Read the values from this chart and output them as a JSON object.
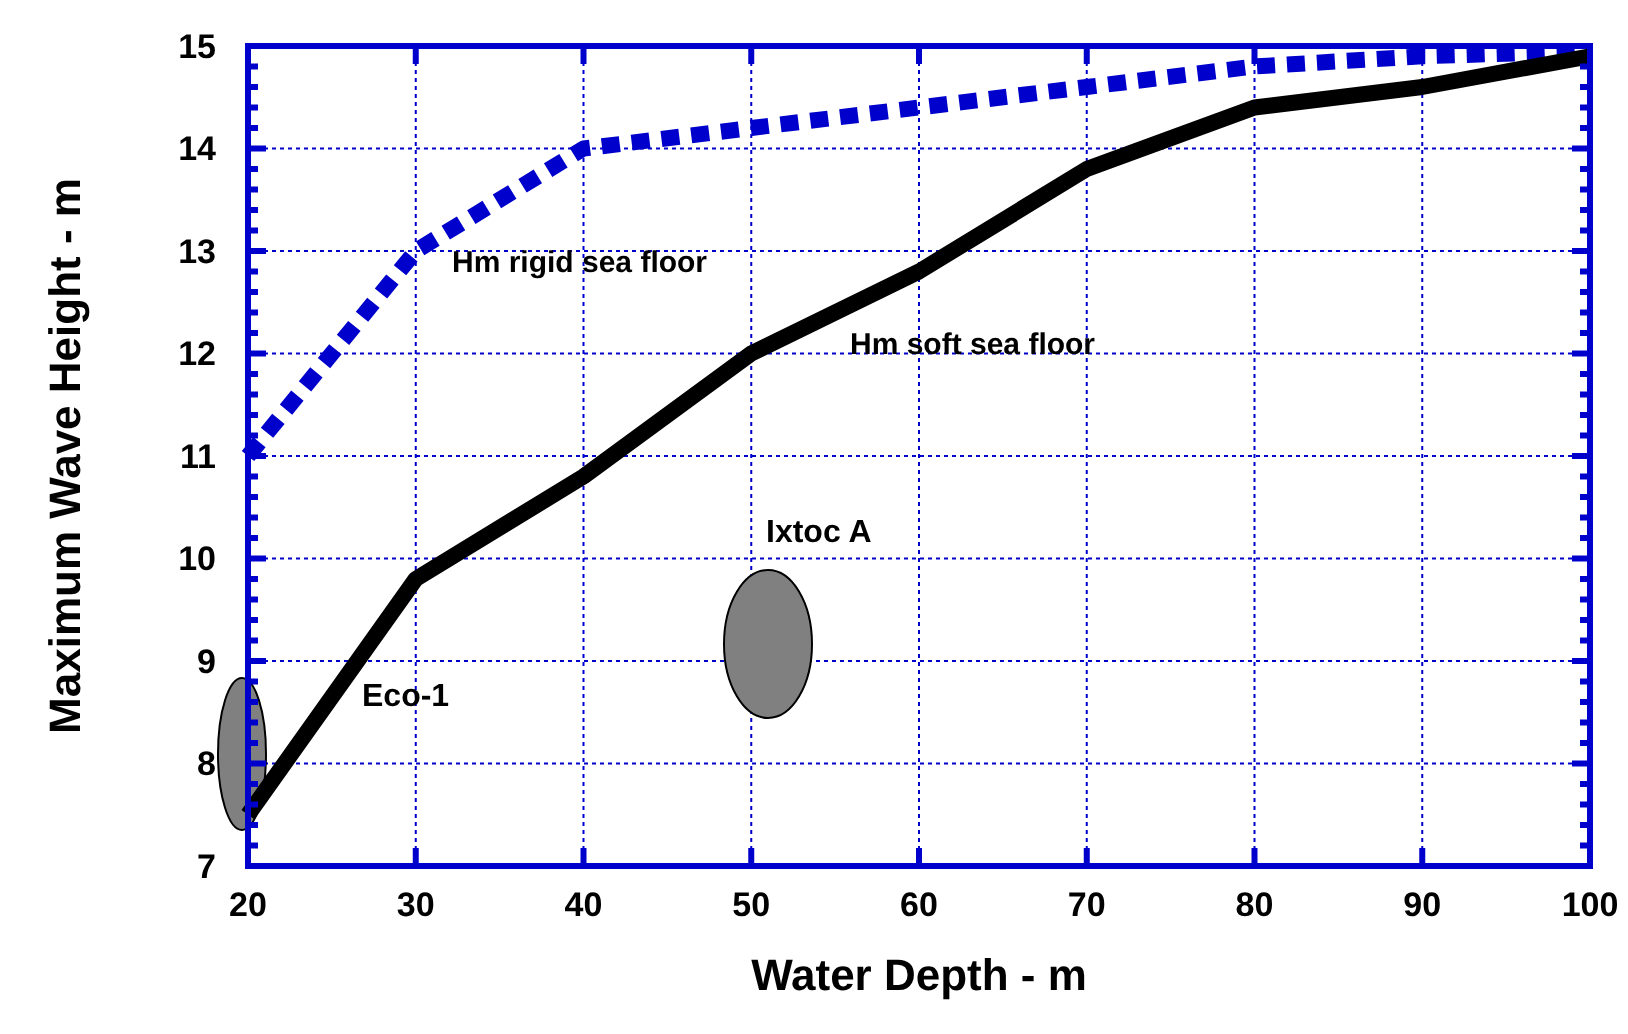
{
  "chart_data": {
    "type": "line",
    "xlabel": "Water Depth - m",
    "ylabel": "Maximum Wave Height - m",
    "xlim": [
      20,
      100
    ],
    "ylim": [
      7,
      15
    ],
    "xticks": [
      20,
      30,
      40,
      50,
      60,
      70,
      80,
      90,
      100
    ],
    "yticks": [
      7,
      8,
      9,
      10,
      11,
      12,
      13,
      14,
      15
    ],
    "grid": true,
    "series": [
      {
        "name": "Hm rigid sea floor",
        "color": "#0000cc",
        "line_style": "dashed",
        "x": [
          20,
          30,
          40,
          50,
          60,
          70,
          80,
          90,
          100
        ],
        "values": [
          11,
          13,
          14,
          14.2,
          14.4,
          14.6,
          14.8,
          14.9,
          14.95
        ]
      },
      {
        "name": "Hm soft sea floor",
        "color": "#000000",
        "line_style": "solid",
        "x": [
          20,
          30,
          40,
          50,
          60,
          70,
          80,
          90,
          100
        ],
        "values": [
          7.5,
          9.8,
          10.8,
          12,
          12.8,
          13.8,
          14.4,
          14.6,
          14.9
        ]
      }
    ],
    "annotations": [
      "Eco-1",
      "Ixtoc A"
    ]
  }
}
